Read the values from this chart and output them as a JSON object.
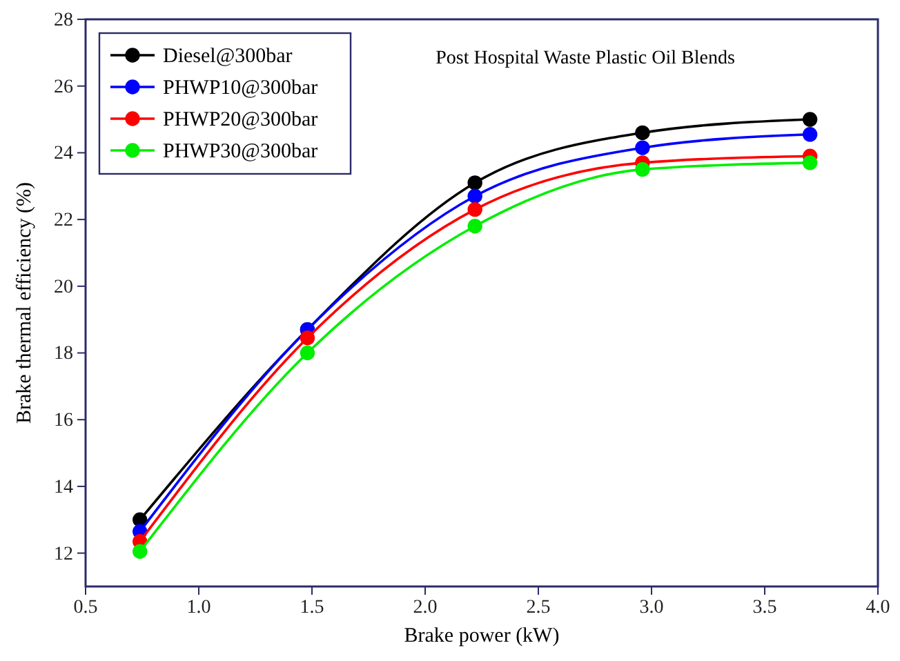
{
  "chart_data": {
    "type": "line",
    "title": "Post Hospital Waste Plastic Oil Blends",
    "xlabel": "Brake power (kW)",
    "ylabel": "Brake thermal efficiency (%)",
    "x": [
      0.74,
      1.48,
      2.22,
      2.96,
      3.7
    ],
    "series": [
      {
        "name": "Diesel@300bar",
        "color": "#000000",
        "values": [
          13.0,
          18.7,
          23.1,
          24.6,
          25.0
        ]
      },
      {
        "name": "PHWP10@300bar",
        "color": "#0000ff",
        "values": [
          12.65,
          18.7,
          22.7,
          24.15,
          24.55
        ]
      },
      {
        "name": "PHWP20@300bar",
        "color": "#ff0000",
        "values": [
          12.35,
          18.45,
          22.3,
          23.7,
          23.9
        ]
      },
      {
        "name": "PHWP30@300bar",
        "color": "#00ee00",
        "values": [
          12.05,
          18.0,
          21.8,
          23.5,
          23.7
        ]
      }
    ],
    "xlim": [
      0.5,
      4.0
    ],
    "xticks": [
      {
        "value": 0.5,
        "label": "0.5"
      },
      {
        "value": 1,
        "label": "1.0"
      },
      {
        "value": 1.5,
        "label": "1.5"
      },
      {
        "value": 2,
        "label": "2.0"
      },
      {
        "value": 2.5,
        "label": "2.5"
      },
      {
        "value": 3,
        "label": "3.0"
      },
      {
        "value": 3.5,
        "label": "3.5"
      },
      {
        "value": 4,
        "label": "4.0"
      }
    ],
    "ylim": [
      11,
      28
    ],
    "yticks": [
      12,
      14,
      16,
      18,
      20,
      22,
      24,
      26,
      28
    ],
    "legend": "top left",
    "marker": "circle",
    "line_style": "solid",
    "grid": false
  }
}
